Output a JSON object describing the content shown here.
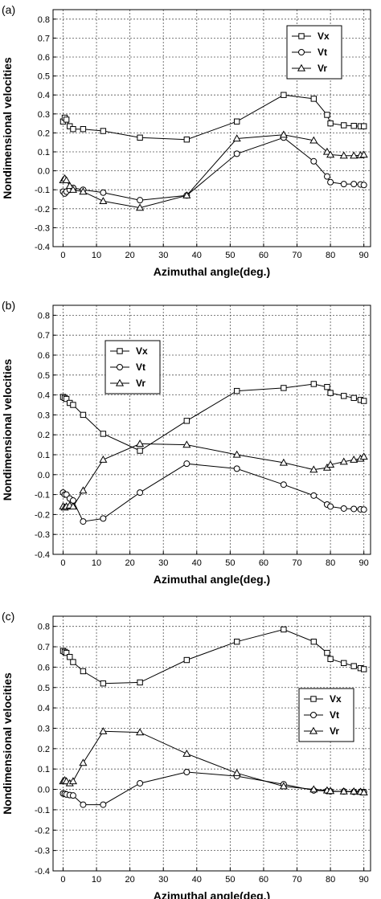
{
  "chart_data": [
    {
      "type": "line",
      "panel_label": "(a)",
      "xlabel": "Azimuthal angle(deg.)",
      "ylabel": "Nondimensional velocities",
      "xlim": [
        -3,
        92
      ],
      "ylim": [
        -0.4,
        0.85
      ],
      "xticks": [
        0,
        10,
        20,
        30,
        40,
        50,
        60,
        70,
        80,
        90
      ],
      "yticks": [
        -0.4,
        -0.3,
        -0.2,
        -0.1,
        0.0,
        0.1,
        0.2,
        0.3,
        0.4,
        0.5,
        0.6,
        0.7,
        0.8
      ],
      "grid": true,
      "legend_position": "top-right",
      "series": [
        {
          "name": "Vx",
          "marker": "square",
          "x": [
            0,
            0.5,
            1,
            2,
            3,
            6,
            12,
            23,
            37,
            52,
            66,
            75,
            79,
            80,
            84,
            87,
            89,
            90
          ],
          "y": [
            0.26,
            0.28,
            0.27,
            0.235,
            0.22,
            0.22,
            0.21,
            0.175,
            0.165,
            0.26,
            0.4,
            0.38,
            0.295,
            0.25,
            0.24,
            0.237,
            0.235,
            0.235
          ]
        },
        {
          "name": "Vt",
          "marker": "circle",
          "x": [
            0,
            0.5,
            1,
            2,
            3,
            6,
            12,
            23,
            37,
            52,
            66,
            75,
            79,
            80,
            84,
            87,
            89,
            90
          ],
          "y": [
            -0.11,
            -0.12,
            -0.11,
            -0.1,
            -0.09,
            -0.1,
            -0.115,
            -0.155,
            -0.13,
            0.09,
            0.175,
            0.05,
            -0.03,
            -0.06,
            -0.07,
            -0.07,
            -0.072,
            -0.075
          ]
        },
        {
          "name": "Vr",
          "marker": "triangle",
          "x": [
            0,
            0.5,
            1,
            2,
            3,
            6,
            12,
            23,
            37,
            52,
            66,
            75,
            79,
            80,
            84,
            87,
            89,
            90
          ],
          "y": [
            -0.05,
            -0.04,
            -0.05,
            -0.08,
            -0.1,
            -0.11,
            -0.16,
            -0.195,
            -0.13,
            0.17,
            0.19,
            0.16,
            0.1,
            0.085,
            0.08,
            0.08,
            0.082,
            0.085
          ]
        }
      ]
    },
    {
      "type": "line",
      "panel_label": "(b)",
      "xlabel": "Azimuthal angle(deg.)",
      "ylabel": "Nondimensional velocities",
      "xlim": [
        -3,
        92
      ],
      "ylim": [
        -0.4,
        0.85
      ],
      "xticks": [
        0,
        10,
        20,
        30,
        40,
        50,
        60,
        70,
        80,
        90
      ],
      "yticks": [
        -0.4,
        -0.3,
        -0.2,
        -0.1,
        0.0,
        0.1,
        0.2,
        0.3,
        0.4,
        0.5,
        0.6,
        0.7,
        0.8
      ],
      "grid": true,
      "legend_position": "top-left",
      "series": [
        {
          "name": "Vx",
          "marker": "square",
          "x": [
            0,
            0.5,
            1,
            2,
            3,
            6,
            12,
            23,
            37,
            52,
            66,
            75,
            79,
            80,
            84,
            87,
            89,
            90
          ],
          "y": [
            0.39,
            0.385,
            0.38,
            0.36,
            0.35,
            0.3,
            0.205,
            0.12,
            0.27,
            0.42,
            0.435,
            0.455,
            0.44,
            0.41,
            0.395,
            0.385,
            0.375,
            0.37
          ]
        },
        {
          "name": "Vt",
          "marker": "circle",
          "x": [
            0,
            0.5,
            1,
            2,
            3,
            6,
            12,
            23,
            37,
            52,
            66,
            75,
            79,
            80,
            84,
            87,
            89,
            90
          ],
          "y": [
            -0.09,
            -0.1,
            -0.1,
            -0.12,
            -0.13,
            -0.235,
            -0.22,
            -0.09,
            0.055,
            0.03,
            -0.05,
            -0.105,
            -0.15,
            -0.16,
            -0.17,
            -0.172,
            -0.174,
            -0.175
          ]
        },
        {
          "name": "Vr",
          "marker": "triangle",
          "x": [
            0,
            0.5,
            1,
            2,
            3,
            6,
            12,
            23,
            37,
            52,
            66,
            75,
            79,
            80,
            84,
            87,
            89,
            90
          ],
          "y": [
            -0.16,
            -0.165,
            -0.16,
            -0.155,
            -0.16,
            -0.08,
            0.075,
            0.155,
            0.15,
            0.1,
            0.06,
            0.025,
            0.035,
            0.05,
            0.065,
            0.075,
            0.08,
            0.09
          ]
        }
      ]
    },
    {
      "type": "line",
      "panel_label": "(c)",
      "xlabel": "Azimuthal angle(deg.)",
      "ylabel": "Nondimensional velocities",
      "xlim": [
        -3,
        92
      ],
      "ylim": [
        -0.4,
        0.85
      ],
      "xticks": [
        0,
        10,
        20,
        30,
        40,
        50,
        60,
        70,
        80,
        90
      ],
      "yticks": [
        -0.4,
        -0.3,
        -0.2,
        -0.1,
        0.0,
        0.1,
        0.2,
        0.3,
        0.4,
        0.5,
        0.6,
        0.7,
        0.8
      ],
      "grid": true,
      "legend_position": "right",
      "series": [
        {
          "name": "Vx",
          "marker": "square",
          "x": [
            0,
            0.5,
            1,
            2,
            3,
            6,
            12,
            23,
            37,
            52,
            66,
            75,
            79,
            80,
            84,
            87,
            89,
            90
          ],
          "y": [
            0.68,
            0.675,
            0.67,
            0.65,
            0.625,
            0.58,
            0.52,
            0.525,
            0.635,
            0.725,
            0.785,
            0.725,
            0.67,
            0.64,
            0.62,
            0.605,
            0.595,
            0.59
          ]
        },
        {
          "name": "Vt",
          "marker": "circle",
          "x": [
            0,
            0.5,
            1,
            2,
            3,
            6,
            12,
            23,
            37,
            52,
            66,
            75,
            79,
            80,
            84,
            87,
            89,
            90
          ],
          "y": [
            -0.02,
            -0.022,
            -0.025,
            -0.028,
            -0.03,
            -0.075,
            -0.075,
            0.03,
            0.085,
            0.065,
            0.025,
            -0.005,
            -0.008,
            -0.01,
            -0.01,
            -0.012,
            -0.012,
            -0.013
          ]
        },
        {
          "name": "Vr",
          "marker": "triangle",
          "x": [
            0,
            0.5,
            1,
            2,
            3,
            6,
            12,
            23,
            37,
            52,
            66,
            75,
            79,
            80,
            84,
            87,
            89,
            90
          ],
          "y": [
            0.04,
            0.045,
            0.04,
            0.03,
            0.04,
            0.13,
            0.285,
            0.28,
            0.175,
            0.08,
            0.015,
            0.0,
            -0.005,
            -0.008,
            -0.01,
            -0.01,
            -0.012,
            -0.015
          ]
        }
      ]
    }
  ]
}
